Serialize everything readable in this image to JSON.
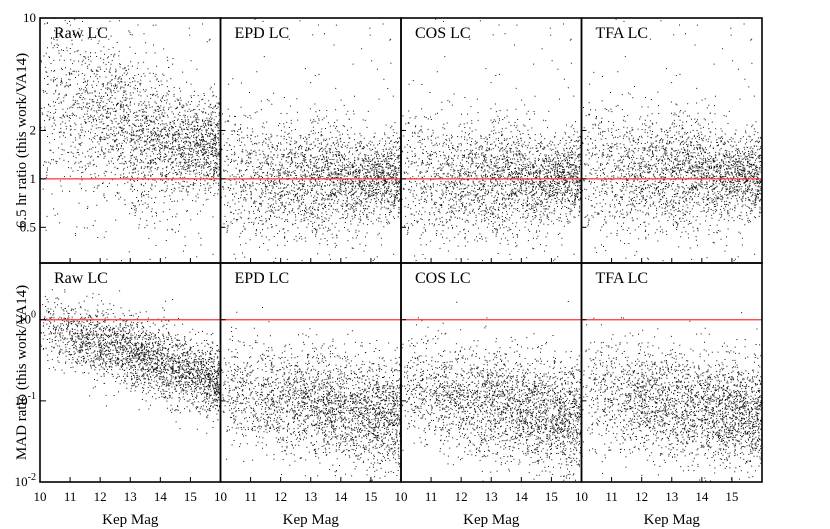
{
  "chart_data": [
    {
      "type": "scatter",
      "row": "top",
      "ylabel": "6.5 hr ratio (this work/VA14)",
      "y_scale": "log",
      "ylim": [
        0.3,
        10
      ],
      "y_ticks": [
        {
          "value": 10,
          "label": "10"
        },
        {
          "value": 2,
          "label": "2"
        },
        {
          "value": 1,
          "label": "1"
        },
        {
          "value": 0.5,
          "label": "0.5"
        }
      ],
      "reference_line": {
        "y": 1,
        "color": "#ff3333"
      },
      "panels": [
        {
          "label": "Raw LC"
        },
        {
          "label": "EPD LC"
        },
        {
          "label": "COS LC"
        },
        {
          "label": "TFA LC"
        }
      ]
    },
    {
      "type": "scatter",
      "row": "bottom",
      "ylabel": "MAD ratio (this work/VA14)",
      "y_scale": "log",
      "ylim": [
        0.01,
        5
      ],
      "y_ticks": [
        {
          "value": 1,
          "label": "10^0"
        },
        {
          "value": 0.1,
          "label": "10^-1"
        },
        {
          "value": 0.01,
          "label": "10^-2"
        }
      ],
      "reference_line": {
        "y": 1,
        "color": "#ff3333"
      },
      "panels": [
        {
          "label": "Raw LC"
        },
        {
          "label": "EPD LC"
        },
        {
          "label": "COS LC"
        },
        {
          "label": "TFA LC"
        }
      ]
    }
  ],
  "x_axis": {
    "xlabel": "Kep Mag",
    "xlim": [
      10,
      16
    ],
    "ticks": [
      10,
      11,
      12,
      13,
      14,
      15
    ]
  }
}
